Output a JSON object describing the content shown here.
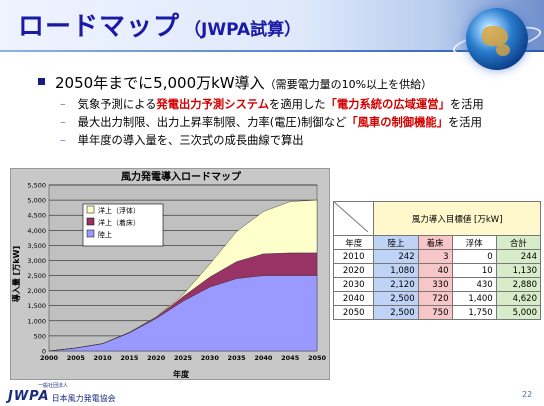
{
  "slide": {
    "title": "ロードマップ",
    "title_sub": "（JWPA試算）",
    "page_number": "22"
  },
  "bullet": {
    "main": "2050年までに5,000万kW導入",
    "note": "（需要電力量の10%以上を供給）"
  },
  "sub_bullets": [
    {
      "dash": "–",
      "pre": "気象予測による",
      "red1": "発電出力予測システム",
      "mid": "を適用した",
      "red2": "「電力系統の広域運営」",
      "post": "を活用"
    },
    {
      "dash": "–",
      "pre": "最大出力制限、出力上昇率制限、力率(電圧)制御など",
      "red1": "「風車の制御機能」",
      "mid": "",
      "red2": "",
      "post": "を活用"
    },
    {
      "dash": "–",
      "pre": "単年度の導入量を、三次式の成長曲線で算出",
      "red1": "",
      "mid": "",
      "red2": "",
      "post": ""
    }
  ],
  "chart_data": {
    "type": "area",
    "title": "風力発電導入ロードマップ",
    "xlabel": "年度",
    "ylabel": "導入量 [万kW]",
    "xlim": [
      2000,
      2050
    ],
    "ylim": [
      0,
      5500
    ],
    "x_ticks": [
      "2000",
      "2005",
      "2010",
      "2015",
      "2020",
      "2025",
      "2030",
      "2035",
      "2040",
      "2045",
      "2050"
    ],
    "y_ticks": [
      "0",
      "500",
      "1,000",
      "1,500",
      "2,000",
      "2,500",
      "3,000",
      "3,500",
      "4,000",
      "4,500",
      "5,000",
      "5,500"
    ],
    "legend_position": "top-left",
    "x": [
      2000,
      2005,
      2010,
      2015,
      2020,
      2025,
      2030,
      2035,
      2040,
      2045,
      2050
    ],
    "series": [
      {
        "name": "陸上",
        "color": "#9999ff",
        "values": [
          0,
          100,
          242,
          600,
          1080,
          1650,
          2120,
          2400,
          2500,
          2500,
          2500
        ]
      },
      {
        "name": "洋上（着床）",
        "color": "#993366",
        "values": [
          0,
          0,
          3,
          15,
          40,
          150,
          330,
          560,
          720,
          750,
          750
        ]
      },
      {
        "name": "洋上（浮体）",
        "color": "#ffffcc",
        "values": [
          0,
          0,
          0,
          3,
          10,
          60,
          430,
          1000,
          1400,
          1700,
          1750
        ]
      }
    ],
    "legend": [
      "洋上（浮体）",
      "洋上（着床）",
      "陸上"
    ]
  },
  "table": {
    "title": "風力導入目標値 [万kW]",
    "headers": [
      "年度",
      "陸上",
      "着床",
      "浮体",
      "合計"
    ],
    "rows": [
      [
        "2010",
        "242",
        "3",
        "0",
        "244"
      ],
      [
        "2020",
        "1,080",
        "40",
        "10",
        "1,130"
      ],
      [
        "2030",
        "2,120",
        "330",
        "430",
        "2,880"
      ],
      [
        "2040",
        "2,500",
        "720",
        "1,400",
        "4,620"
      ],
      [
        "2050",
        "2,500",
        "750",
        "1,750",
        "5,000"
      ]
    ]
  },
  "footer": {
    "logo": "JWPA",
    "org": "日本風力発電協会",
    "org_small": "一般社団法人"
  }
}
